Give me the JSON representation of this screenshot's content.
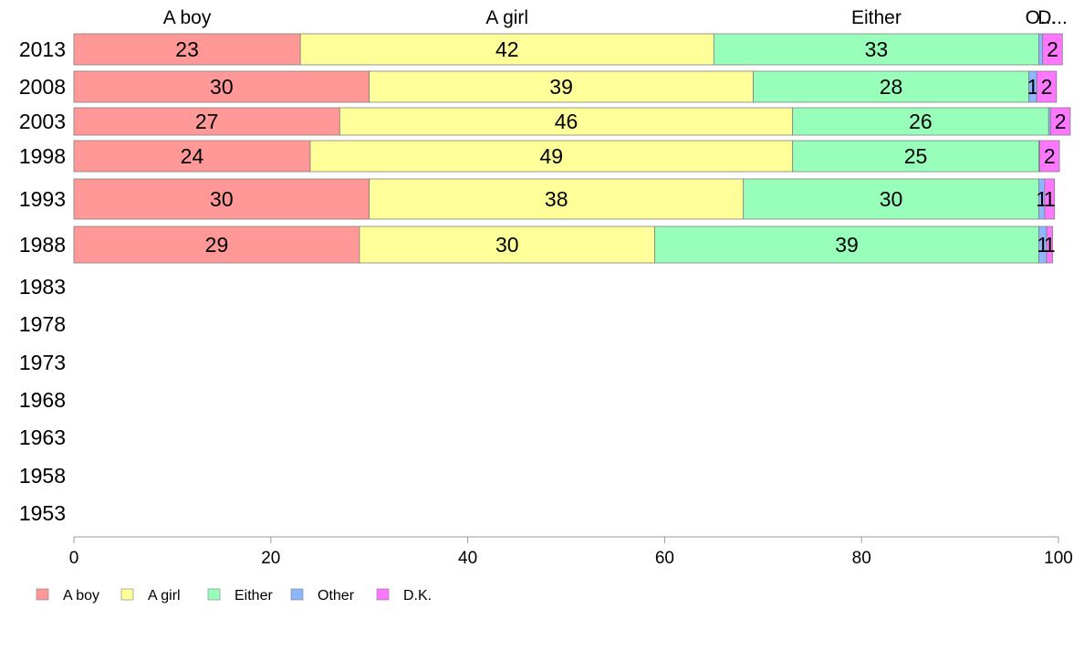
{
  "chart_data": {
    "type": "bar",
    "orientation": "horizontal",
    "stacked": true,
    "series": [
      {
        "name": "A boy",
        "color": "#ff9896",
        "header": "A boy"
      },
      {
        "name": "A girl",
        "color": "#ffff99",
        "header": "A girl"
      },
      {
        "name": "Either",
        "color": "#98ffbb",
        "header": "Either"
      },
      {
        "name": "Other",
        "color": "#8db6ff",
        "header": "O..."
      },
      {
        "name": "D.K.",
        "color": "#ff77ff",
        "header": "D..."
      }
    ],
    "categories": [
      "2013",
      "2008",
      "2003",
      "1998",
      "1993",
      "1988",
      "1983",
      "1978",
      "1973",
      "1968",
      "1963",
      "1958",
      "1953"
    ],
    "rows": [
      {
        "year": "2013",
        "values": [
          23,
          42,
          33,
          0.4,
          2
        ],
        "labels": [
          "23",
          "42",
          "33",
          "",
          "2"
        ]
      },
      {
        "year": "2008",
        "values": [
          30,
          39,
          28,
          0.8,
          2
        ],
        "labels": [
          "30",
          "39",
          "28",
          "1",
          "2"
        ]
      },
      {
        "year": "2003",
        "values": [
          27,
          46,
          26,
          0.2,
          2
        ],
        "labels": [
          "27",
          "46",
          "26",
          "",
          "2"
        ]
      },
      {
        "year": "1998",
        "values": [
          24,
          49,
          25,
          0.1,
          2
        ],
        "labels": [
          "24",
          "49",
          "25",
          "",
          "2"
        ]
      },
      {
        "year": "1993",
        "values": [
          30,
          38,
          30,
          0.6,
          1
        ],
        "labels": [
          "30",
          "38",
          "30",
          "1",
          "1"
        ]
      },
      {
        "year": "1988",
        "values": [
          29,
          30,
          39,
          0.8,
          0.6
        ],
        "labels": [
          "29",
          "30",
          "39",
          "1",
          "1"
        ]
      },
      {
        "year": "1983",
        "values": [],
        "labels": []
      },
      {
        "year": "1978",
        "values": [],
        "labels": []
      },
      {
        "year": "1973",
        "values": [],
        "labels": []
      },
      {
        "year": "1968",
        "values": [],
        "labels": []
      },
      {
        "year": "1963",
        "values": [],
        "labels": []
      },
      {
        "year": "1958",
        "values": [],
        "labels": []
      },
      {
        "year": "1953",
        "values": [],
        "labels": []
      }
    ],
    "xlim": [
      0,
      100
    ],
    "xticks": [
      0,
      20,
      40,
      60,
      80,
      100
    ],
    "title": "",
    "xlabel": "",
    "ylabel": "",
    "grid": false,
    "legend_position": "bottom-left"
  }
}
